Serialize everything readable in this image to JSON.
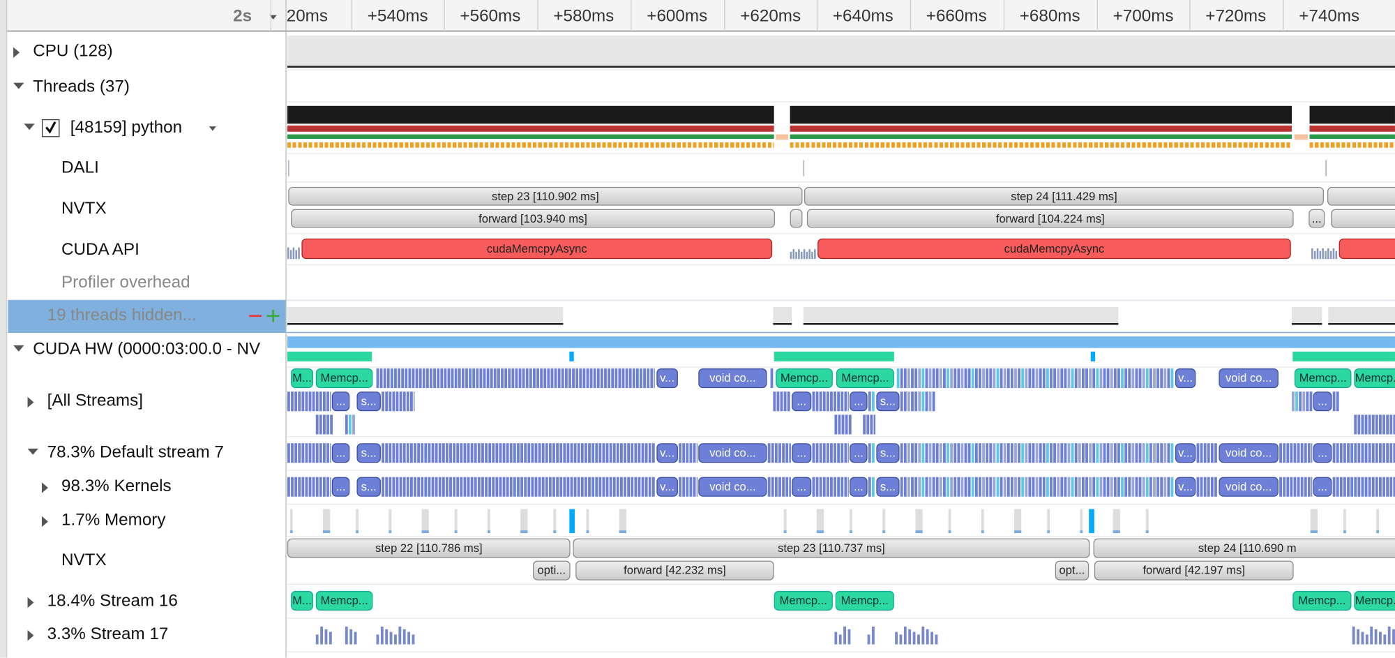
{
  "toolbar": {
    "zoom": "2s",
    "ticks": [
      "20ms",
      "+540ms",
      "+560ms",
      "+580ms",
      "+600ms",
      "+620ms",
      "+640ms",
      "+660ms",
      "+680ms",
      "+700ms",
      "+720ms",
      "+740ms"
    ]
  },
  "rows": [
    "CPU (128)",
    "Threads (37)",
    "[48159] python",
    "DALI",
    "NVTX",
    "CUDA API",
    "Profiler overhead",
    "19 threads hidden...",
    "CUDA HW (0000:03:00.0 - NV",
    "[All Streams]",
    "78.3% Default stream 7",
    "98.3% Kernels",
    "1.7% Memory",
    "NVTX",
    "18.4% Stream 16",
    "3.3% Stream 17"
  ],
  "thread_nvtx": {
    "steps": [
      "step 23 [110.902 ms]",
      "step 24 [111.429 ms]"
    ],
    "forward": [
      "forward [103.940 ms]",
      "forward [104.224 ms]",
      "..."
    ]
  },
  "cuda_api": [
    "cudaMemcpyAsync",
    "cudaMemcpyAsync"
  ],
  "all_streams_1": [
    "M...",
    "Memcp...",
    "v...",
    "void co...",
    "Memcp...",
    "Memcp...",
    "v...",
    "void co...",
    "Memcp...",
    "Memcp..."
  ],
  "all_streams_2": [
    "...",
    "s...",
    "...",
    "...",
    "s...",
    "..."
  ],
  "default_stream": [
    "...",
    "s...",
    "v...",
    "void co...",
    "...",
    "...",
    "s...",
    "v...",
    "void co...",
    "..."
  ],
  "kernels": [
    "...",
    "s...",
    "v...",
    "void co...",
    "...",
    "...",
    "s...",
    "v...",
    "void co...",
    "..."
  ],
  "stream_nvtx": {
    "steps": [
      "step 22 [110.786 ms]",
      "step 23 [110.737 ms]",
      "step 24 [110.690 m"
    ],
    "ranges": [
      "opti...",
      "forward [42.232 ms]",
      "opt...",
      "forward [42.197 ms]"
    ]
  },
  "stream16": [
    "M...",
    "Memcp...",
    "Memcp...",
    "Memcp...",
    "Memcp...",
    "Memcp..."
  ]
}
